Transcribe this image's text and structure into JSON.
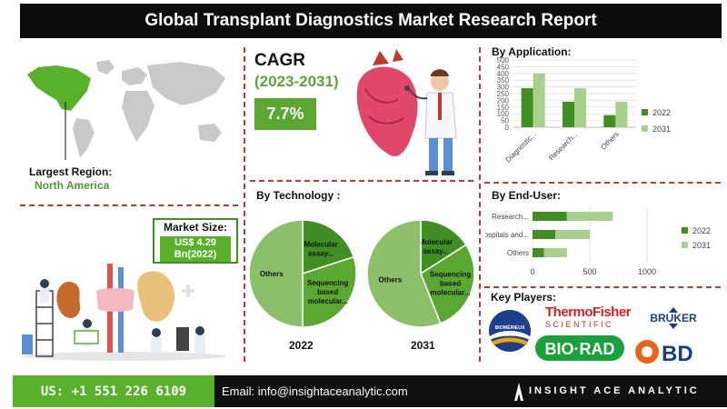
{
  "title": "Global Transplant Diagnostics Market Research Report",
  "region": {
    "label": "Largest Region:",
    "value": "North America"
  },
  "market_size": {
    "label": "Market Size:",
    "value_line1": "US$ 4.29",
    "value_line2": "Bn(2022)"
  },
  "cagr": {
    "label": "CAGR",
    "period": "(2023-2031)",
    "value": "7.7%"
  },
  "sections": {
    "technology": "By Technology :",
    "application": "By Application:",
    "end_user": "By End-User:",
    "key_players": "Key Players:"
  },
  "key_players": {
    "thermo_line1": "ThermoFisher",
    "thermo_line2": "SCIENTIFIC",
    "bruker": "BRUKER",
    "biomerieux": "BIOMÉRIEUX",
    "biorad": "BIO·RAD",
    "bd": "BD"
  },
  "footer": {
    "phone": "US: +1 551 226 6109",
    "email": "Email: info@insightaceanalytic.com",
    "brand": "INSIGHT ACE ANALYTIC"
  },
  "colors": {
    "dark_green": "#3f8f22",
    "light_green": "#a8d08d",
    "accent": "#5aa832",
    "divider": "#c0392b"
  },
  "chart_data": [
    {
      "type": "bar",
      "title": "By Application:",
      "categories": [
        "Diagnostic...",
        "Research...",
        "Others"
      ],
      "series": [
        {
          "name": "2022",
          "values": [
            290,
            190,
            90
          ],
          "color": "#3f8f22"
        },
        {
          "name": "2031",
          "values": [
            400,
            290,
            190
          ],
          "color": "#a8d08d"
        }
      ],
      "yticks": [
        0,
        50,
        100,
        150,
        200,
        250,
        300,
        350,
        400,
        450,
        500
      ],
      "ylim": [
        0,
        500
      ],
      "legend": "right",
      "grid": true
    },
    {
      "type": "bar",
      "orientation": "horizontal",
      "title": "By End-User:",
      "categories": [
        "Research...",
        "Hospitals and...",
        "Others"
      ],
      "series": [
        {
          "name": "2022",
          "values": [
            300,
            200,
            100
          ],
          "color": "#3f8f22"
        },
        {
          "name": "2031",
          "values": [
            400,
            300,
            200
          ],
          "color": "#a8d08d"
        }
      ],
      "xticks": [
        0,
        500,
        1000
      ],
      "xlim": [
        0,
        1000
      ],
      "legend": "right",
      "grid": true
    },
    {
      "type": "pie",
      "title": "By Technology :",
      "year": "2022",
      "slices": [
        {
          "label": "Molecular assay...",
          "value": 20,
          "color": "#3f8f22"
        },
        {
          "label": "Sequencing based molecular...",
          "value": 30,
          "color": "#5aa832"
        },
        {
          "label": "Others",
          "value": 50,
          "color": "#8cbf6a"
        }
      ]
    },
    {
      "type": "pie",
      "title": "By Technology :",
      "year": "2031",
      "slices": [
        {
          "label": "Molecular assay...",
          "value": 16,
          "color": "#3f8f22"
        },
        {
          "label": "Sequencing based molecular...",
          "value": 28,
          "color": "#5aa832"
        },
        {
          "label": "Others",
          "value": 56,
          "color": "#8cbf6a"
        }
      ]
    }
  ]
}
